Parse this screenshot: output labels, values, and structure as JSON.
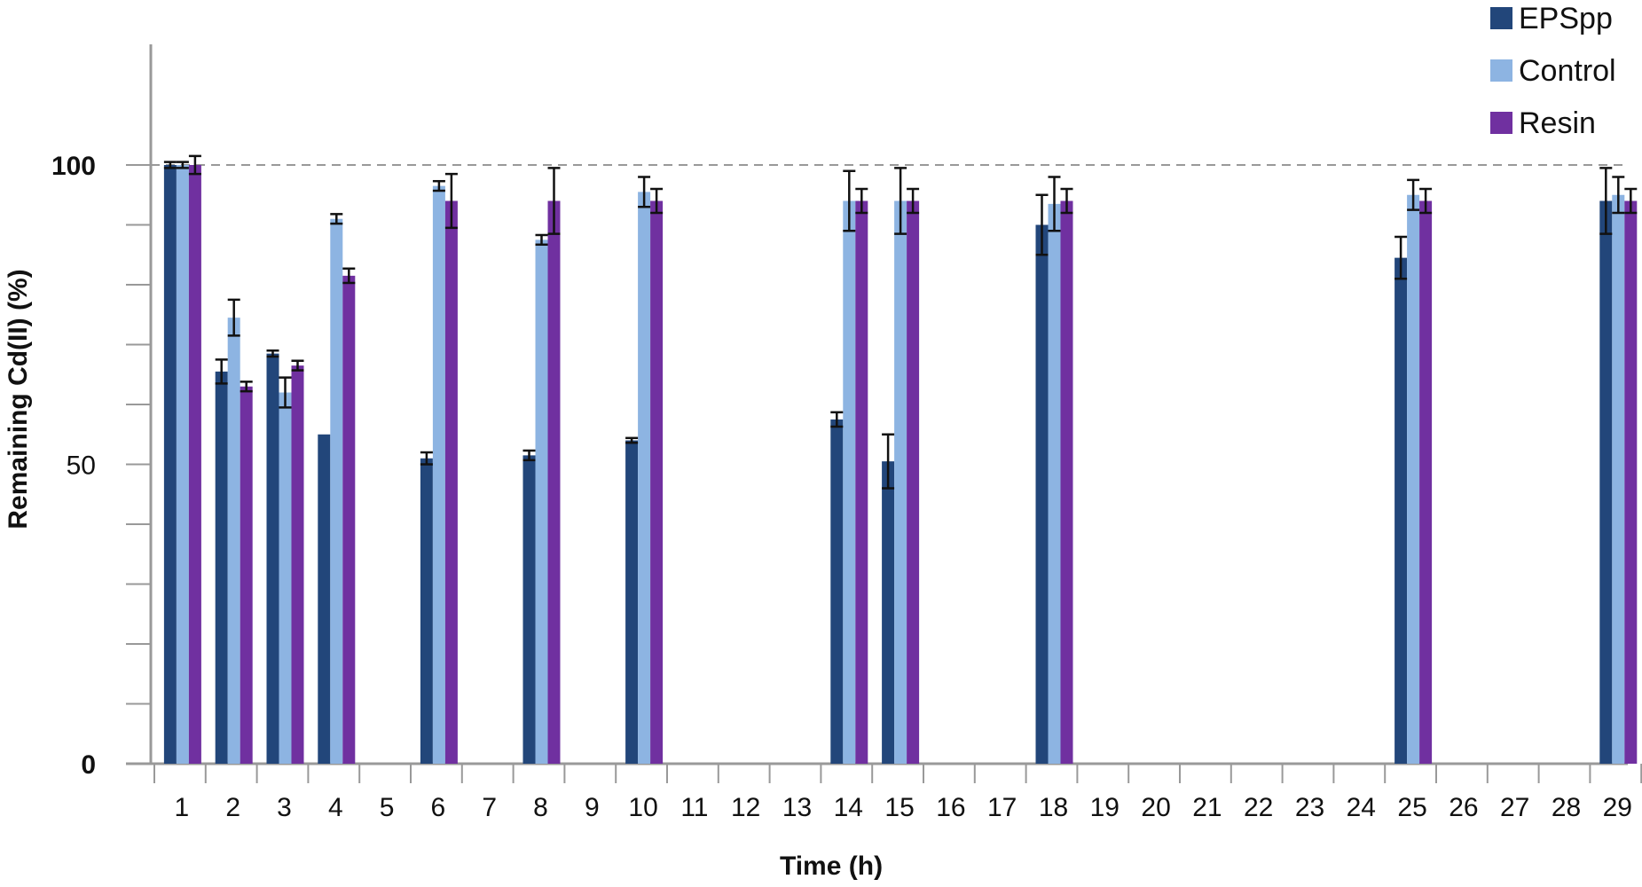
{
  "chart_data": {
    "type": "bar",
    "xlabel": "Time (h)",
    "ylabel": "Remaining Cd(II) (%)",
    "ylim": [
      0,
      100
    ],
    "y_ticks": [
      0,
      10,
      20,
      30,
      40,
      50,
      60,
      70,
      80,
      90,
      100
    ],
    "y_tick_labels": [
      {
        "value": 0,
        "label": "0",
        "bold": true
      },
      {
        "value": 50,
        "label": "50",
        "bold": false
      },
      {
        "value": 100,
        "label": "100",
        "bold": true
      }
    ],
    "reference_line": 100,
    "grid": false,
    "legend_position": "top-right",
    "categories": [
      "1",
      "2",
      "3",
      "4",
      "5",
      "6",
      "7",
      "8",
      "9",
      "10",
      "11",
      "12",
      "13",
      "14",
      "15",
      "16",
      "17",
      "18",
      "19",
      "20",
      "21",
      "22",
      "23",
      "24",
      "25",
      "26",
      "27",
      "28",
      "29"
    ],
    "series": [
      {
        "name": "EPSpp",
        "color": "#22467a",
        "values": [
          100,
          65.5,
          68.5,
          55,
          null,
          51,
          null,
          51.5,
          null,
          54,
          null,
          null,
          null,
          57.5,
          50.5,
          null,
          null,
          90,
          null,
          null,
          null,
          null,
          null,
          null,
          84.5,
          null,
          null,
          null,
          94
        ],
        "errors": [
          0.5,
          2,
          0.5,
          0,
          null,
          1,
          null,
          0.8,
          null,
          0.4,
          null,
          null,
          null,
          1.2,
          4.5,
          null,
          null,
          5,
          null,
          null,
          null,
          null,
          null,
          null,
          3.5,
          null,
          null,
          null,
          5.5
        ]
      },
      {
        "name": "Control",
        "color": "#8db4e2",
        "values": [
          100,
          74.5,
          62,
          91,
          null,
          96.5,
          null,
          87.5,
          null,
          95.5,
          null,
          null,
          null,
          94,
          94,
          null,
          null,
          93.5,
          null,
          null,
          null,
          null,
          null,
          null,
          95,
          null,
          null,
          null,
          95
        ],
        "errors": [
          0.5,
          3,
          2.5,
          0.8,
          null,
          0.8,
          null,
          0.8,
          null,
          2.5,
          null,
          null,
          null,
          5,
          5.5,
          null,
          null,
          4.5,
          null,
          null,
          null,
          null,
          null,
          null,
          2.5,
          null,
          null,
          null,
          3
        ]
      },
      {
        "name": "Resin",
        "color": "#7030a0",
        "values": [
          100,
          63,
          66.5,
          81.5,
          null,
          94,
          null,
          94,
          null,
          94,
          null,
          null,
          null,
          94,
          94,
          null,
          null,
          94,
          null,
          null,
          null,
          null,
          null,
          null,
          94,
          null,
          null,
          null,
          94
        ],
        "errors": [
          1.5,
          0.8,
          0.8,
          1.2,
          null,
          4.5,
          null,
          5.5,
          null,
          2,
          null,
          null,
          null,
          2,
          2,
          null,
          null,
          2,
          null,
          null,
          null,
          null,
          null,
          null,
          2,
          null,
          null,
          null,
          2
        ]
      }
    ]
  }
}
